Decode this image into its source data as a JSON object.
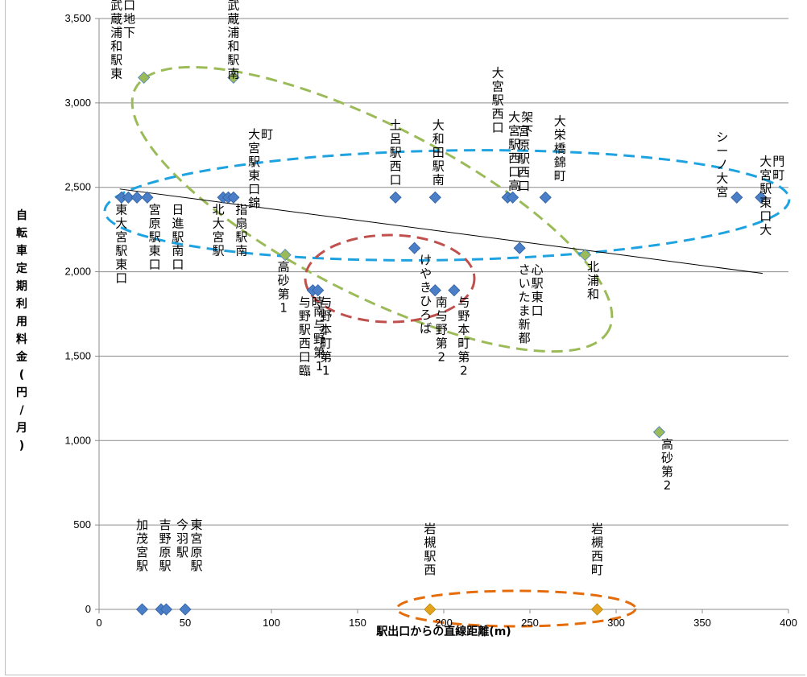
{
  "chart_data": {
    "type": "scatter",
    "xlabel": "駅出口からの直線距離(m)",
    "ylabel": "自転車定期利用料金(円/月)",
    "xlim": [
      0,
      400
    ],
    "ylim": [
      0,
      3500
    ],
    "x_ticks": [
      "0",
      "50",
      "100",
      "150",
      "200",
      "250",
      "300",
      "350",
      "400"
    ],
    "y_ticks": [
      "0",
      "500",
      "1,000",
      "1,500",
      "2,000",
      "2,500",
      "3,000",
      "3,500"
    ],
    "grid": "horizontal",
    "legend": "none",
    "series": [
      {
        "marker_color": "#4a7ec7",
        "points": [
          {
            "x": 13,
            "y": 2440,
            "label": "東大宮駅東口"
          },
          {
            "x": 17,
            "y": 2440,
            "label": ""
          },
          {
            "x": 22,
            "y": 2440,
            "label": "宮原駅東口"
          },
          {
            "x": 28,
            "y": 2440,
            "label": "日進駅南口"
          },
          {
            "x": 72,
            "y": 2440,
            "label": "北大宮駅"
          },
          {
            "x": 75,
            "y": 2440,
            "label": ""
          },
          {
            "x": 78,
            "y": 2440,
            "label": "指扇駅南"
          },
          {
            "x": 172,
            "y": 2440,
            "label": "土呂駅西口"
          },
          {
            "x": 195,
            "y": 2440,
            "label": "大和田駅南"
          },
          {
            "x": 237,
            "y": 2440,
            "label": "大宮駅西口"
          },
          {
            "x": 240,
            "y": 2440,
            "label": "大宮駅西口高架下"
          },
          {
            "x": 259,
            "y": 2440,
            "label": "大栄橋錦町"
          },
          {
            "x": 370,
            "y": 2440,
            "label": "シーノ大宮"
          },
          {
            "x": 384,
            "y": 2440,
            "label": "大宮駅東口大門町"
          },
          {
            "x": 183,
            "y": 2140,
            "label": "けやきひろば"
          },
          {
            "x": 244,
            "y": 2140,
            "label": "さいたま新都心駅東口"
          },
          {
            "x": 124,
            "y": 1890,
            "label": "与野駅西口臨時"
          },
          {
            "x": 127,
            "y": 1890,
            "label": "与野本町第1"
          },
          {
            "x": 195,
            "y": 1890,
            "label": "南与野第2"
          },
          {
            "x": 206,
            "y": 1890,
            "label": "与野本町第2"
          },
          {
            "x": 25,
            "y": 0,
            "label": "加茂宮駅"
          },
          {
            "x": 36,
            "y": 0,
            "label": "吉野原駅"
          },
          {
            "x": 39,
            "y": 0,
            "label": "今羽駅"
          },
          {
            "x": 50,
            "y": 0,
            "label": "東宮原駅"
          }
        ]
      },
      {
        "marker_color": "#9bbb59",
        "points": [
          {
            "x": 26,
            "y": 3150,
            "label": "武蔵浦和駅東口地下"
          },
          {
            "x": 78,
            "y": 3150,
            "label": "武蔵浦和駅南"
          },
          {
            "x": 108,
            "y": 2100,
            "label": "高砂第1"
          },
          {
            "x": 282,
            "y": 2100,
            "label": "北浦和"
          },
          {
            "x": 325,
            "y": 1050,
            "label": "高砂第2"
          }
        ]
      },
      {
        "marker_color": "#e5a21e",
        "points": [
          {
            "x": 192,
            "y": 0,
            "label": "岩槻駅西"
          },
          {
            "x": 289,
            "y": 0,
            "label": "岩槻西町"
          }
        ]
      }
    ],
    "extra_labels": [
      {
        "x": 90,
        "y": 2440,
        "label": "大宮駅東口錦町"
      },
      {
        "x": 125,
        "y": 1890,
        "label": "南与野第1"
      },
      {
        "x": 240,
        "y": 2440,
        "label": "宮原駅西口"
      }
    ],
    "trend_line": {
      "x": [
        12,
        385
      ],
      "y": [
        2490,
        1990
      ],
      "color": "#000000"
    },
    "groups": [
      {
        "color": "#9bbb59",
        "style": "dashed"
      },
      {
        "color": "#1fa3e0",
        "style": "dashed"
      },
      {
        "color": "#c0504d",
        "style": "dashed"
      },
      {
        "color": "#e46c0a",
        "style": "dashed"
      }
    ]
  }
}
